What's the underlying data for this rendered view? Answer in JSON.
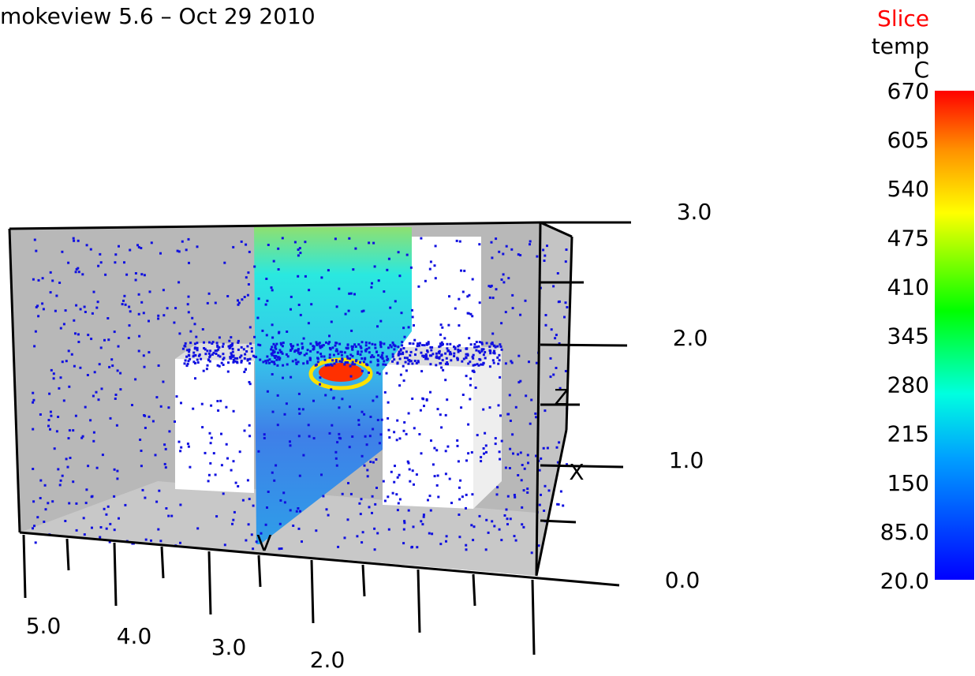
{
  "header": {
    "title": "mokeview 5.6 – Oct 29 2010"
  },
  "colorbar": {
    "title": "Slice",
    "quantity": "temp",
    "unit": "C",
    "labels": [
      "670",
      "605",
      "540",
      "475",
      "410",
      "345",
      "280",
      "215",
      "150",
      "85.0",
      "20.0"
    ]
  },
  "axes": {
    "z_labels": [
      "3.0",
      "2.0",
      "1.0",
      "0.0"
    ],
    "y_labels": [
      "5.0",
      "4.0",
      "3.0",
      "2.0"
    ],
    "letters": [
      "Z",
      "X",
      "V"
    ]
  }
}
